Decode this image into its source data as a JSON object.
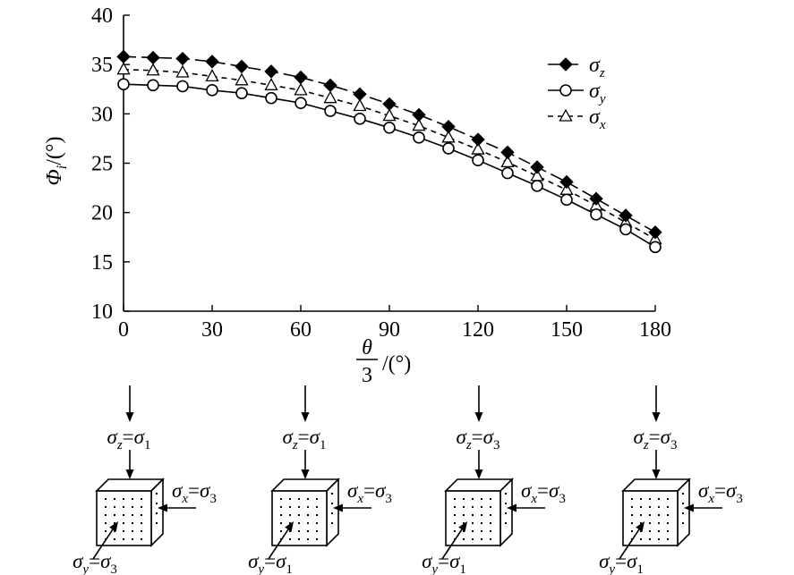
{
  "chart_data": {
    "type": "line",
    "title": "",
    "xlabel": {
      "num": "θ",
      "den": "3",
      "unit": "/(°)"
    },
    "ylabel": {
      "sym": "Φ",
      "sub": "i",
      "unit": "/(°)"
    },
    "xlim": [
      0,
      180
    ],
    "ylim": [
      10,
      40
    ],
    "xticks": [
      "0",
      "30",
      "60",
      "90",
      "120",
      "150",
      "180"
    ],
    "yticks": [
      "10",
      "15",
      "20",
      "25",
      "30",
      "35",
      "40"
    ],
    "grid": false,
    "legend_position": "top-right",
    "x": [
      0,
      10,
      20,
      30,
      40,
      50,
      60,
      70,
      80,
      90,
      100,
      110,
      120,
      130,
      140,
      150,
      160,
      170,
      180
    ],
    "series": [
      {
        "name": "σ",
        "sub": "z",
        "marker": "filled-diamond",
        "dash": "long-dash",
        "values": [
          35.8,
          35.7,
          35.6,
          35.3,
          34.8,
          34.3,
          33.7,
          32.9,
          32.0,
          31.0,
          29.9,
          28.7,
          27.4,
          26.1,
          24.6,
          23.1,
          21.4,
          19.7,
          18.0
        ]
      },
      {
        "name": "σ",
        "sub": "y",
        "marker": "open-circle",
        "dash": "solid",
        "values": [
          33.0,
          32.9,
          32.8,
          32.4,
          32.1,
          31.6,
          31.1,
          30.3,
          29.5,
          28.6,
          27.6,
          26.5,
          25.3,
          24.0,
          22.7,
          21.3,
          19.8,
          18.3,
          16.5
        ]
      },
      {
        "name": "σ",
        "sub": "x",
        "marker": "open-triangle",
        "dash": "short-dash",
        "values": [
          34.5,
          34.4,
          34.2,
          33.8,
          33.4,
          32.9,
          32.4,
          31.6,
          30.8,
          29.8,
          28.8,
          27.6,
          26.4,
          25.1,
          23.7,
          22.3,
          20.7,
          19.0,
          17.3
        ]
      }
    ]
  },
  "stress_states": [
    {
      "z": {
        "sym": "σ",
        "sub": "z",
        "eq": "=",
        "val": "σ",
        "valsub": "1"
      },
      "x": {
        "sym": "σ",
        "sub": "x",
        "eq": "=",
        "val": "σ",
        "valsub": "3"
      },
      "y": {
        "sym": "σ",
        "sub": "y",
        "eq": "=",
        "val": "σ",
        "valsub": "3"
      }
    },
    {
      "z": {
        "sym": "σ",
        "sub": "z",
        "eq": "=",
        "val": "σ",
        "valsub": "1"
      },
      "x": {
        "sym": "σ",
        "sub": "x",
        "eq": "=",
        "val": "σ",
        "valsub": "3"
      },
      "y": {
        "sym": "σ",
        "sub": "y",
        "eq": "=",
        "val": "σ",
        "valsub": "1"
      }
    },
    {
      "z": {
        "sym": "σ",
        "sub": "z",
        "eq": "=",
        "val": "σ",
        "valsub": "3"
      },
      "x": {
        "sym": "σ",
        "sub": "x",
        "eq": "=",
        "val": "σ",
        "valsub": "3"
      },
      "y": {
        "sym": "σ",
        "sub": "y",
        "eq": "=",
        "val": "σ",
        "valsub": "1"
      }
    },
    {
      "z": {
        "sym": "σ",
        "sub": "z",
        "eq": "=",
        "val": "σ",
        "valsub": "3"
      },
      "x": {
        "sym": "σ",
        "sub": "x",
        "eq": "=",
        "val": "σ",
        "valsub": "3"
      },
      "y": {
        "sym": "σ",
        "sub": "y",
        "eq": "=",
        "val": "σ",
        "valsub": "1"
      }
    }
  ]
}
